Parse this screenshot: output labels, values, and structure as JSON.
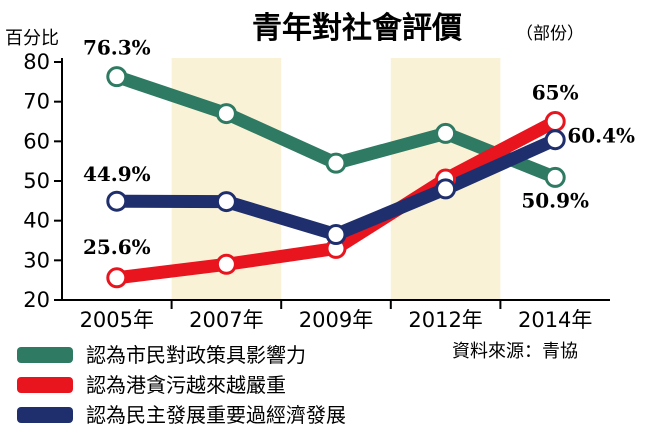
{
  "chart_data": {
    "type": "line",
    "title": "青年對社會評價",
    "subtitle": "（部份）",
    "ylabel": "百分比",
    "xlabel": "",
    "ylim": [
      20,
      80
    ],
    "yticks": [
      20,
      30,
      40,
      50,
      60,
      70,
      80
    ],
    "categories": [
      "2005年",
      "2007年",
      "2009年",
      "2012年",
      "2014年"
    ],
    "shaded_bands": [
      "2007年",
      "2012年"
    ],
    "grid": false,
    "legend_position": "bottom-left",
    "series": [
      {
        "name": "認為市民對政策具影響力",
        "color": "#2e7a62",
        "values": [
          76.3,
          67,
          54.5,
          62,
          50.9
        ],
        "labels": [
          "76.3%",
          "",
          "",
          "",
          "50.9%"
        ]
      },
      {
        "name": "認為港貪污越來越嚴重",
        "color": "#e8141e",
        "values": [
          25.6,
          29,
          33,
          50.5,
          65
        ],
        "labels": [
          "25.6%",
          "",
          "",
          "",
          "65%"
        ]
      },
      {
        "name": "認為民主發展重要過經濟發展",
        "color": "#1f2f6e",
        "values": [
          44.9,
          44.8,
          36.5,
          48,
          60.4
        ],
        "labels": [
          "44.9%",
          "",
          "",
          "",
          "60.4%"
        ]
      }
    ],
    "source": "資料來源：青協"
  }
}
